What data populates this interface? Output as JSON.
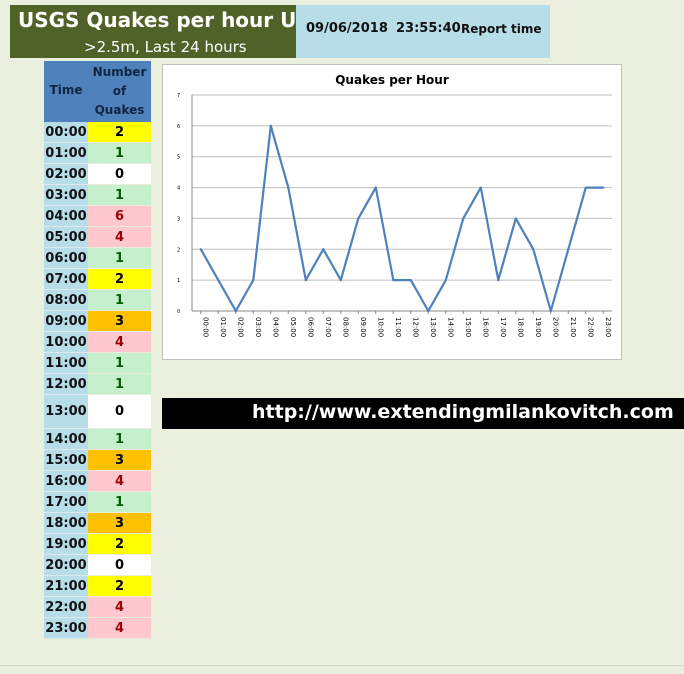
{
  "header": {
    "title": "USGS Quakes per hour UTC",
    "subtitle": ">2.5m, Last 24 hours",
    "report_date": "09/06/2018",
    "report_time": "23:55:40",
    "report_label": "Report time"
  },
  "table": {
    "col_time": "Time",
    "col_count": [
      "Number",
      "of",
      "Quakes"
    ],
    "rows": [
      {
        "time": "00:00",
        "count": "2"
      },
      {
        "time": "01:00",
        "count": "1"
      },
      {
        "time": "02:00",
        "count": "0"
      },
      {
        "time": "03:00",
        "count": "1"
      },
      {
        "time": "04:00",
        "count": "6"
      },
      {
        "time": "05:00",
        "count": "4"
      },
      {
        "time": "06:00",
        "count": "1"
      },
      {
        "time": "07:00",
        "count": "2"
      },
      {
        "time": "08:00",
        "count": "1"
      },
      {
        "time": "09:00",
        "count": "3"
      },
      {
        "time": "10:00",
        "count": "4"
      },
      {
        "time": "11:00",
        "count": "1"
      },
      {
        "time": "12:00",
        "count": "1"
      },
      {
        "time": "13:00",
        "count": "0"
      },
      {
        "time": "14:00",
        "count": "1"
      },
      {
        "time": "15:00",
        "count": "3"
      },
      {
        "time": "16:00",
        "count": "4"
      },
      {
        "time": "17:00",
        "count": "1"
      },
      {
        "time": "18:00",
        "count": "3"
      },
      {
        "time": "19:00",
        "count": "2"
      },
      {
        "time": "20:00",
        "count": "0"
      },
      {
        "time": "21:00",
        "count": "2"
      },
      {
        "time": "22:00",
        "count": "4"
      },
      {
        "time": "23:00",
        "count": "4"
      }
    ],
    "colors": {
      "0": {
        "bg": "#ffffff",
        "fg": "#000000"
      },
      "1": {
        "bg": "#c6efce",
        "fg": "#006100"
      },
      "2": {
        "bg": "#ffff00",
        "fg": "#000000"
      },
      "3": {
        "bg": "#ffc000",
        "fg": "#000000"
      },
      "4": {
        "bg": "#ffc7ce",
        "fg": "#9c0006"
      },
      "6": {
        "bg": "#ffc7ce",
        "fg": "#9c0006"
      }
    }
  },
  "chart_data": {
    "type": "line",
    "title": "Quakes per Hour",
    "categories": [
      "00:00",
      "01:00",
      "02:00",
      "03:00",
      "04:00",
      "05:00",
      "06:00",
      "07:00",
      "08:00",
      "09:00",
      "10:00",
      "11:00",
      "12:00",
      "13:00",
      "14:00",
      "15:00",
      "16:00",
      "17:00",
      "18:00",
      "19:00",
      "20:00",
      "21:00",
      "22:00",
      "23:00"
    ],
    "values": [
      2,
      1,
      0,
      1,
      6,
      4,
      1,
      2,
      1,
      3,
      4,
      1,
      1,
      0,
      1,
      3,
      4,
      1,
      3,
      2,
      0,
      2,
      4,
      4
    ],
    "ylim": [
      0,
      7
    ],
    "yticks": [
      "0",
      "1",
      "2",
      "3",
      "4",
      "5",
      "6",
      "7"
    ],
    "grid": true,
    "line_color": "#4f81bd"
  },
  "footer": {
    "url": "http://www.extendingmilankovitch.com"
  }
}
